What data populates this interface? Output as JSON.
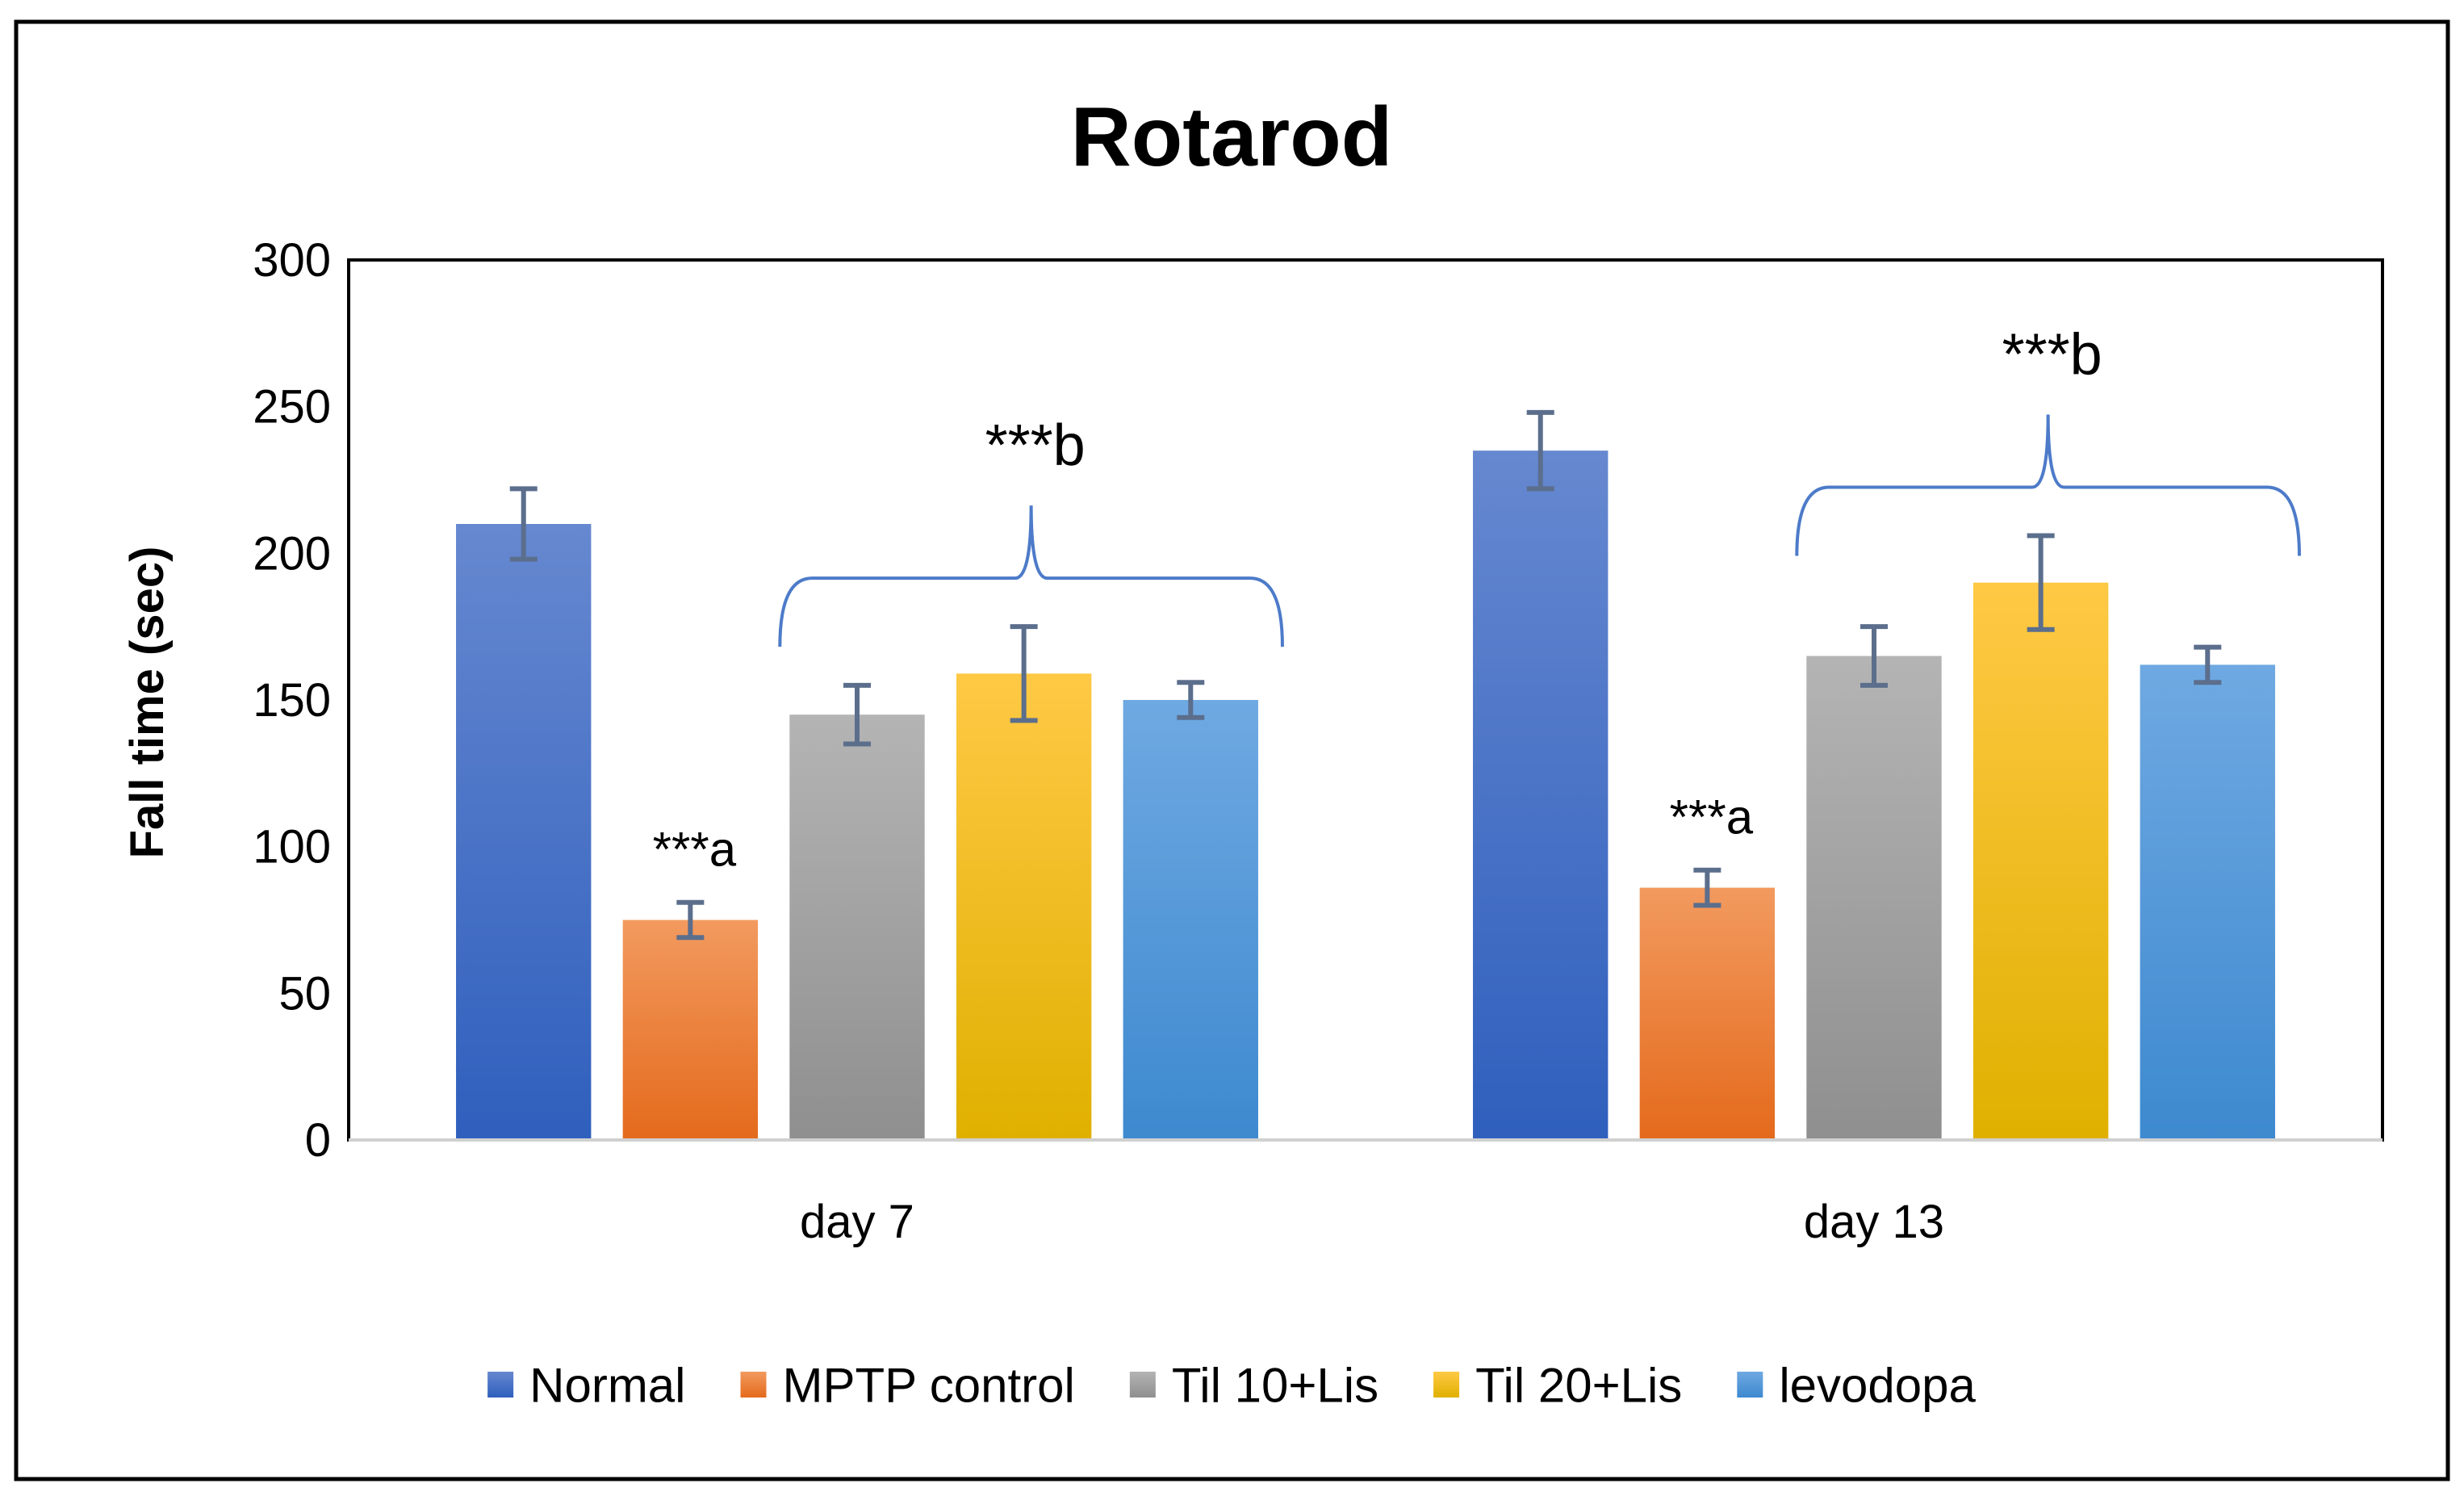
{
  "chart_data": {
    "type": "bar",
    "title": "Rotarod",
    "xlabel": "",
    "ylabel": "Fall time (sec)",
    "ylim": [
      0,
      300
    ],
    "yticks": [
      0,
      50,
      100,
      150,
      200,
      250,
      300
    ],
    "grid": false,
    "legend_position": "bottom",
    "categories": [
      "day 7",
      "day 13"
    ],
    "series": [
      {
        "name": "Normal",
        "values": [
          210,
          235
        ],
        "errors": [
          12,
          13
        ],
        "color_top": "#6688d0",
        "color_bottom": "#2f5fbd"
      },
      {
        "name": "MPTP control",
        "values": [
          75,
          86
        ],
        "errors": [
          6,
          6
        ],
        "color_top": "#f29a5f",
        "color_bottom": "#e46a1c"
      },
      {
        "name": "Til 10+Lis",
        "values": [
          145,
          165
        ],
        "errors": [
          10,
          10
        ],
        "color_top": "#b4b4b4",
        "color_bottom": "#8f8f8f"
      },
      {
        "name": "Til 20+Lis",
        "values": [
          159,
          190
        ],
        "errors": [
          16,
          16
        ],
        "color_top": "#ffc945",
        "color_bottom": "#e0b000"
      },
      {
        "name": "levodopa",
        "values": [
          150,
          162
        ],
        "errors": [
          6,
          6
        ],
        "color_top": "#6fa9e2",
        "color_bottom": "#3d89cf"
      }
    ],
    "annotations": [
      {
        "text": "***a",
        "category": "day 7",
        "series": "MPTP control"
      },
      {
        "text": "***a",
        "category": "day 13",
        "series": "MPTP control"
      },
      {
        "text": "***b",
        "category": "day 7",
        "bracket_series": [
          "Til 10+Lis",
          "Til 20+Lis",
          "levodopa"
        ]
      },
      {
        "text": "***b",
        "category": "day 13",
        "bracket_series": [
          "Til 10+Lis",
          "Til 20+Lis",
          "levodopa"
        ]
      }
    ],
    "errorbar_color": "#5b6e8c",
    "bracket_color": "#4d7bc9"
  }
}
